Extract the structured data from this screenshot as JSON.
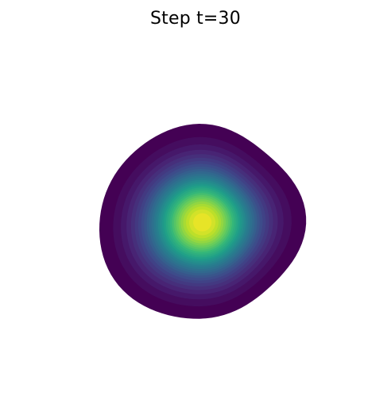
{
  "chart_data": {
    "type": "contour",
    "title": "Step t=30",
    "xlabel": "",
    "ylabel": "",
    "axes_visible": false,
    "grid": false,
    "colormap": "viridis",
    "colormap_stops": [
      "#440154",
      "#482878",
      "#3e4989",
      "#31688e",
      "#26828e",
      "#1f9e89",
      "#35b779",
      "#6ece58",
      "#b5de2b",
      "#fde725"
    ],
    "contour_levels": 30,
    "peak_value": 1.0,
    "min_value": 0.0,
    "distribution": "gaussian-blob"
  }
}
